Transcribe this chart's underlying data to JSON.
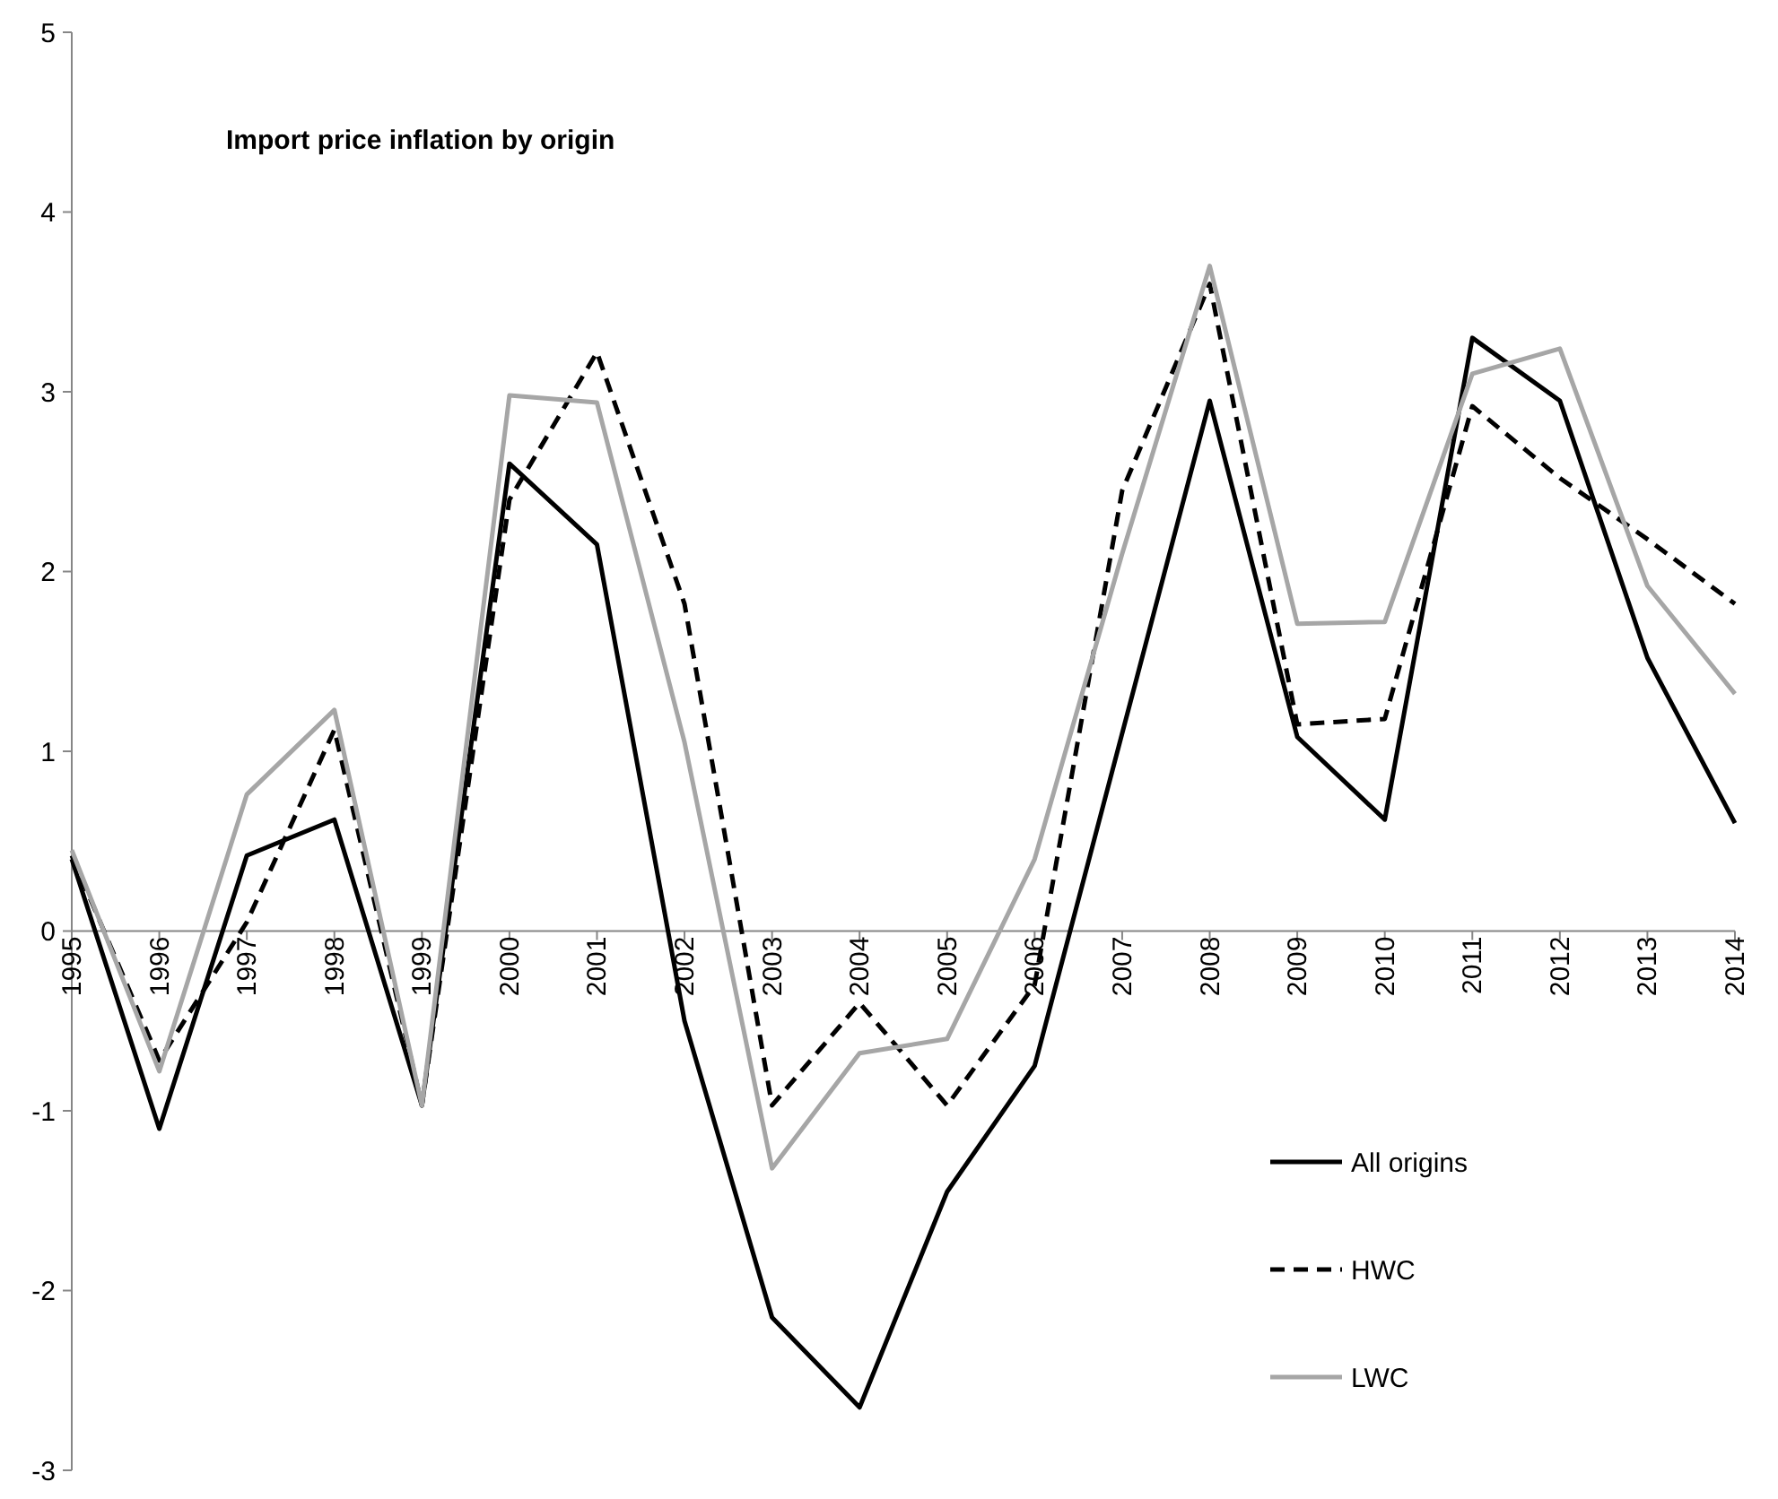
{
  "chart_data": {
    "type": "line",
    "title": "Import price inflation by origin",
    "categories": [
      "1995",
      "1996",
      "1997",
      "1998",
      "1999",
      "2000",
      "2001",
      "2002",
      "2003",
      "2004",
      "2005",
      "2006",
      "2007",
      "2008",
      "2009",
      "2010",
      "2011",
      "2012",
      "2013",
      "2014"
    ],
    "series": [
      {
        "name": "All origins",
        "color": "#000000",
        "line_style": "solid",
        "values": [
          0.4,
          -1.1,
          0.42,
          0.62,
          -0.97,
          2.6,
          2.15,
          -0.5,
          -2.15,
          -2.65,
          -1.45,
          -0.75,
          1.1,
          2.95,
          1.08,
          0.62,
          3.3,
          2.95,
          1.52,
          0.6
        ]
      },
      {
        "name": "HWC",
        "color": "#000000",
        "line_style": "dashed",
        "values": [
          0.42,
          -0.72,
          0.05,
          1.12,
          -0.97,
          2.4,
          3.22,
          1.82,
          -0.97,
          -0.4,
          -0.97,
          -0.3,
          2.45,
          3.6,
          1.15,
          1.18,
          2.92,
          2.52,
          2.18,
          1.82
        ]
      },
      {
        "name": "LWC",
        "color": "#a6a6a6",
        "line_style": "solid",
        "values": [
          0.45,
          -0.78,
          0.76,
          1.23,
          -0.97,
          2.98,
          2.94,
          1.05,
          -1.32,
          -0.68,
          -0.6,
          0.4,
          2.1,
          3.7,
          1.71,
          1.72,
          3.1,
          3.24,
          1.92,
          1.32
        ]
      }
    ],
    "ylim": [
      -3,
      5
    ],
    "yticks": [
      -3,
      -2,
      -1,
      0,
      1,
      2,
      3,
      4,
      5
    ],
    "grid": false,
    "legend": "bottom right",
    "marker": "none"
  }
}
